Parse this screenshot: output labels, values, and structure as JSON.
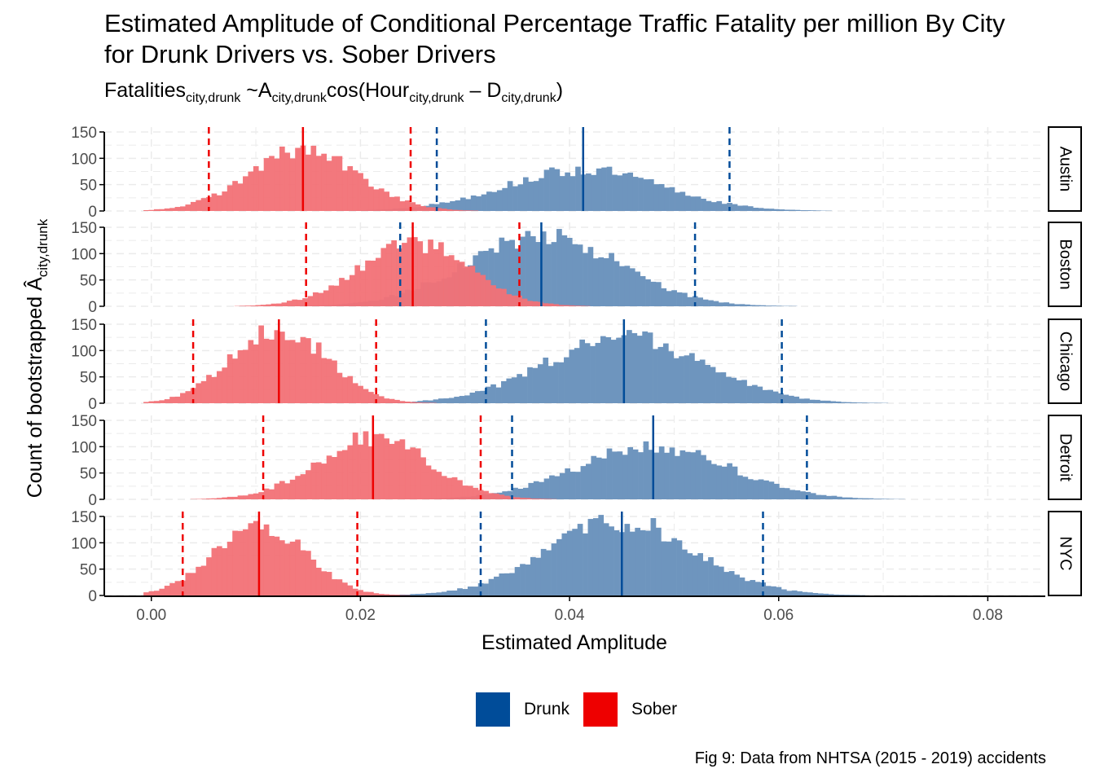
{
  "title": "Estimated Amplitude of Conditional Percentage Traffic Fatality per million By City for Drunk Drivers vs. Sober Drivers",
  "subtitle": {
    "lhs": "Fatalities",
    "lhs_sub": "city,drunk",
    "op": " ~A",
    "a_sub": "city,drunk",
    "fn": "cos(Hour",
    "hour_sub": "city,drunk",
    "minus": " – D",
    "d_sub": "city,drunk",
    "close": ")"
  },
  "caption": "Fig 9: Data from NHTSA (2015 - 2019) accidents",
  "legend": [
    {
      "label": "Drunk",
      "color": "#004C99"
    },
    {
      "label": "Sober",
      "color": "#EE0000"
    }
  ],
  "chart_data": {
    "type": "histogram",
    "xlabel": "Estimated Amplitude",
    "ylabel": "Count of bootstrapped Â",
    "ylabel_sub": "city,drunk",
    "xlim": [
      -0.0045,
      0.0855
    ],
    "ylim": [
      0,
      150
    ],
    "x_ticks": [
      0.0,
      0.02,
      0.04,
      0.06,
      0.08
    ],
    "x_tick_labels": [
      "0.00",
      "0.02",
      "0.04",
      "0.06",
      "0.08"
    ],
    "y_ticks": [
      0,
      50,
      100,
      150
    ],
    "y_tick_labels": [
      "0",
      "50",
      "100",
      "150"
    ],
    "bin_width": 0.0005,
    "colors": {
      "drunk": "#004C99",
      "sober": "#EE0000",
      "drunk_fill": "#6E95BE",
      "sober_fill": "#F27176"
    },
    "grid": true,
    "legend_position": "bottom",
    "facets": [
      {
        "name": "Austin",
        "sober": {
          "mean": 0.0145,
          "lo": 0.0055,
          "hi": 0.0248,
          "sd": 0.0052,
          "peak": 118
        },
        "drunk": {
          "mean": 0.0413,
          "lo": 0.0273,
          "hi": 0.0553,
          "sd": 0.0075,
          "peak": 80
        }
      },
      {
        "name": "Boston",
        "sober": {
          "mean": 0.025,
          "lo": 0.0148,
          "hi": 0.0352,
          "sd": 0.0052,
          "peak": 125
        },
        "drunk": {
          "mean": 0.0373,
          "lo": 0.0238,
          "hi": 0.052,
          "sd": 0.0072,
          "peak": 140
        }
      },
      {
        "name": "Chicago",
        "sober": {
          "mean": 0.0122,
          "lo": 0.004,
          "hi": 0.0215,
          "sd": 0.0045,
          "peak": 148
        },
        "drunk": {
          "mean": 0.0452,
          "lo": 0.032,
          "hi": 0.0603,
          "sd": 0.0075,
          "peak": 130
        }
      },
      {
        "name": "Detroit",
        "sober": {
          "mean": 0.0212,
          "lo": 0.0107,
          "hi": 0.0315,
          "sd": 0.0053,
          "peak": 122
        },
        "drunk": {
          "mean": 0.048,
          "lo": 0.0345,
          "hi": 0.0627,
          "sd": 0.0073,
          "peak": 103
        }
      },
      {
        "name": "NYC",
        "sober": {
          "mean": 0.0103,
          "lo": 0.003,
          "hi": 0.0197,
          "sd": 0.0043,
          "peak": 138
        },
        "drunk": {
          "mean": 0.045,
          "lo": 0.0315,
          "hi": 0.0585,
          "sd": 0.007,
          "peak": 145
        }
      }
    ]
  }
}
